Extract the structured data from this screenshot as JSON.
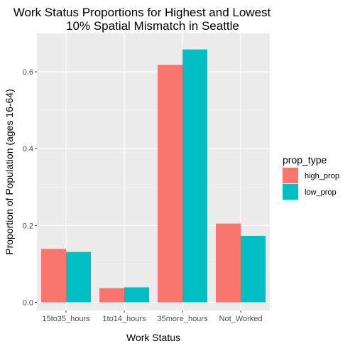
{
  "chart_data": {
    "type": "bar",
    "title_lines": [
      "Work Status Proportions for Highest and Lowest",
      "10% Spatial Mismatch in Seattle"
    ],
    "xlabel": "Work Status",
    "ylabel": "Proportion of Population (ages 16-64)",
    "categories": [
      "15to35_hours",
      "1to14_hours",
      "35more_hours",
      "Not_Worked"
    ],
    "series": [
      {
        "name": "high_prop",
        "color": "#F8766D",
        "values": [
          0.139,
          0.037,
          0.618,
          0.205
        ]
      },
      {
        "name": "low_prop",
        "color": "#00BFC4",
        "values": [
          0.131,
          0.039,
          0.658,
          0.173
        ]
      }
    ],
    "yticks": [
      "0.0",
      "0.2",
      "0.4",
      "0.6"
    ],
    "ylim": [
      0,
      0.69
    ],
    "grid": true,
    "legend": {
      "title": "prop_type",
      "position": "right"
    },
    "panel_background": "#EBEBEB"
  }
}
